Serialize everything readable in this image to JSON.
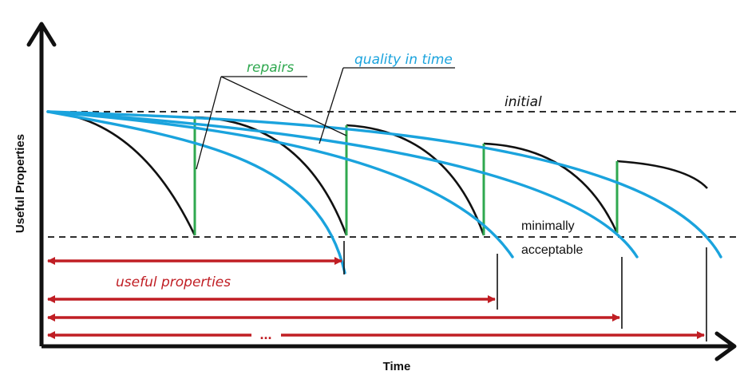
{
  "axes": {
    "y_label": "Useful Properties",
    "x_label": "Time"
  },
  "labels": {
    "repairs": "repairs",
    "quality_in_time": "quality  in time",
    "initial": "initial",
    "minimally_line1": "minimally",
    "minimally_line2": "acceptable",
    "useful_properties": "useful properties",
    "ellipsis": "..."
  },
  "colors": {
    "black_curve": "#111111",
    "blue_curve": "#1aa3dd",
    "repair_line": "#2fa84f",
    "red_arrow": "#c01e24",
    "label_green": "#2fa84f",
    "label_blue": "#1aa3dd",
    "label_red": "#c01e24"
  }
}
